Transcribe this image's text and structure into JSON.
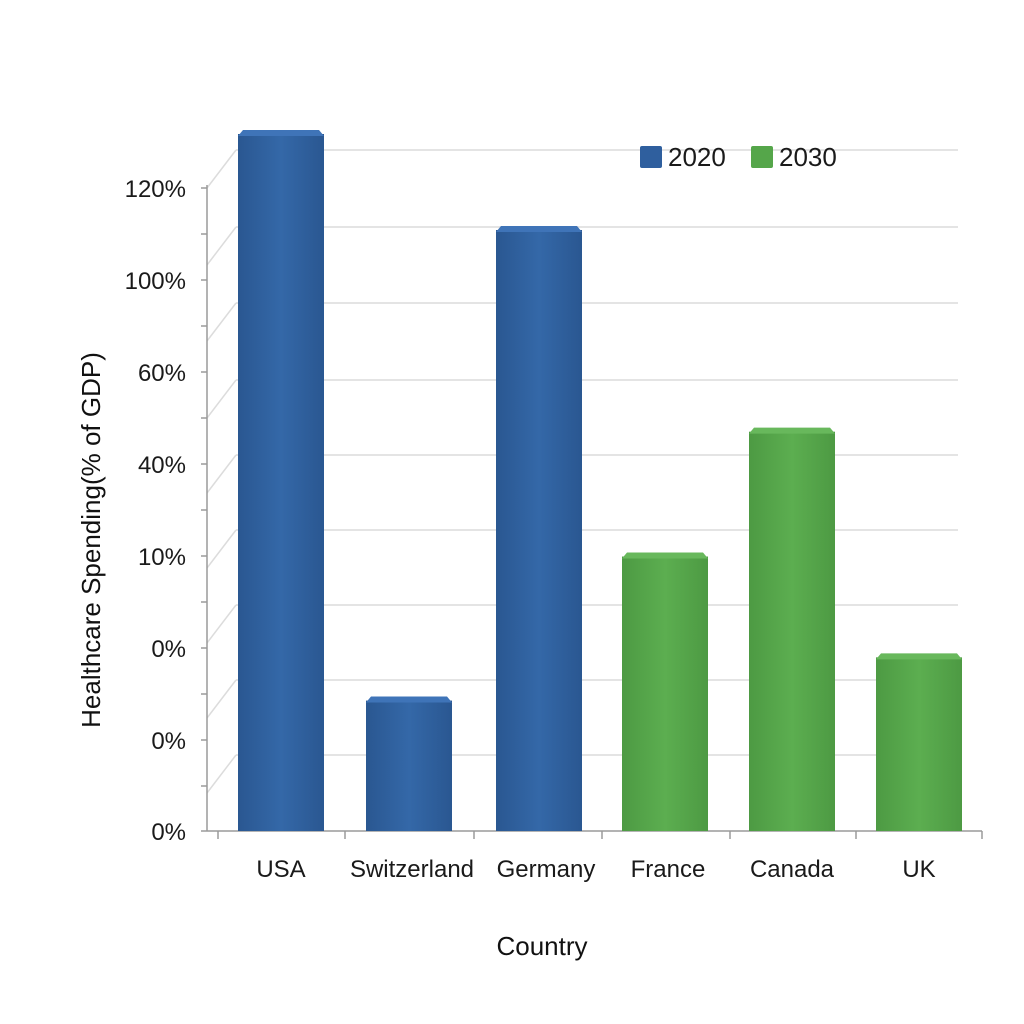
{
  "chart_data": {
    "type": "bar",
    "title": "",
    "xlabel": "Country",
    "ylabel": "Healthcare Spending(% of GDP)",
    "categories": [
      "USA",
      "Switzerland",
      "Germany",
      "France",
      "Canada",
      "UK"
    ],
    "ytick_labels": [
      "0%",
      "0%",
      "0%",
      "10%",
      "40%",
      "60%",
      "100%",
      "120%"
    ],
    "bars": [
      {
        "category": "USA",
        "series": "2020",
        "value": 7.3
      },
      {
        "category": "Switzerland",
        "series": "2020",
        "value": 1.4
      },
      {
        "category": "Germany",
        "series": "2020",
        "value": 6.3
      },
      {
        "category": "France",
        "series": "2030",
        "value": 2.9
      },
      {
        "category": "Canada",
        "series": "2030",
        "value": 4.2
      },
      {
        "category": "UK",
        "series": "2030",
        "value": 1.85
      }
    ],
    "series": [
      {
        "name": "2020",
        "color": "#2f5f9e"
      },
      {
        "name": "2030",
        "color": "#55a64a"
      }
    ],
    "ylim": [
      0,
      7.3
    ],
    "grid": true,
    "legend": "top-right"
  }
}
